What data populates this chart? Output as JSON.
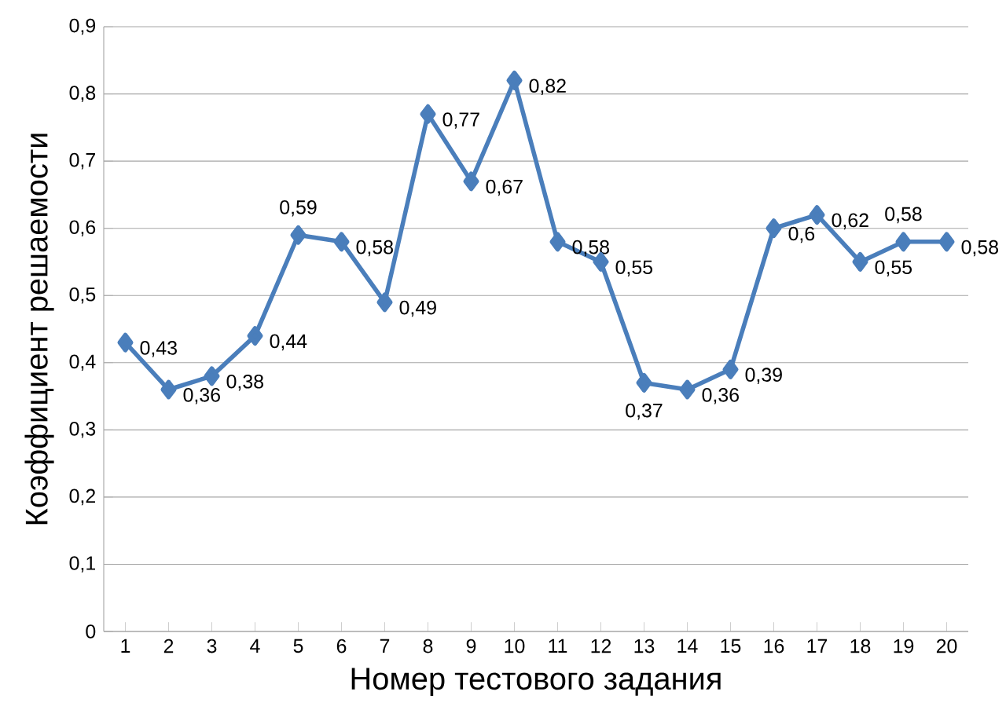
{
  "chart_data": {
    "type": "line",
    "xlabel": "Номер тестового задания",
    "ylabel": "Коэффициент решаемости",
    "categories": [
      "1",
      "2",
      "3",
      "4",
      "5",
      "6",
      "7",
      "8",
      "9",
      "10",
      "11",
      "12",
      "13",
      "14",
      "15",
      "16",
      "17",
      "18",
      "19",
      "20"
    ],
    "values": [
      0.43,
      0.36,
      0.38,
      0.44,
      0.59,
      0.58,
      0.49,
      0.77,
      0.67,
      0.82,
      0.58,
      0.55,
      0.37,
      0.36,
      0.39,
      0.6,
      0.62,
      0.55,
      0.58,
      0.58
    ],
    "value_labels": [
      "0,43",
      "0,36",
      "0,38",
      "0,44",
      "0,59",
      "0,58",
      "0,49",
      "0,77",
      "0,67",
      "0,82",
      "0,58",
      "0,55",
      "0,37",
      "0,36",
      "0,39",
      "0,6",
      "0,62",
      "0,55",
      "0,58",
      "0,58"
    ],
    "color": "#4a7ebb",
    "marker": "diamond",
    "line_style": "solid",
    "grid": "y",
    "ylim": [
      0,
      0.9
    ],
    "yticks": [
      {
        "value": 0,
        "label": "0"
      },
      {
        "value": 0.1,
        "label": "0,1"
      },
      {
        "value": 0.2,
        "label": "0,2"
      },
      {
        "value": 0.3,
        "label": "0,3"
      },
      {
        "value": 0.4,
        "label": "0,4"
      },
      {
        "value": 0.5,
        "label": "0,5"
      },
      {
        "value": 0.6,
        "label": "0,6"
      },
      {
        "value": 0.7,
        "label": "0,7"
      },
      {
        "value": 0.8,
        "label": "0,8"
      },
      {
        "value": 0.9,
        "label": "0,9"
      }
    ]
  }
}
